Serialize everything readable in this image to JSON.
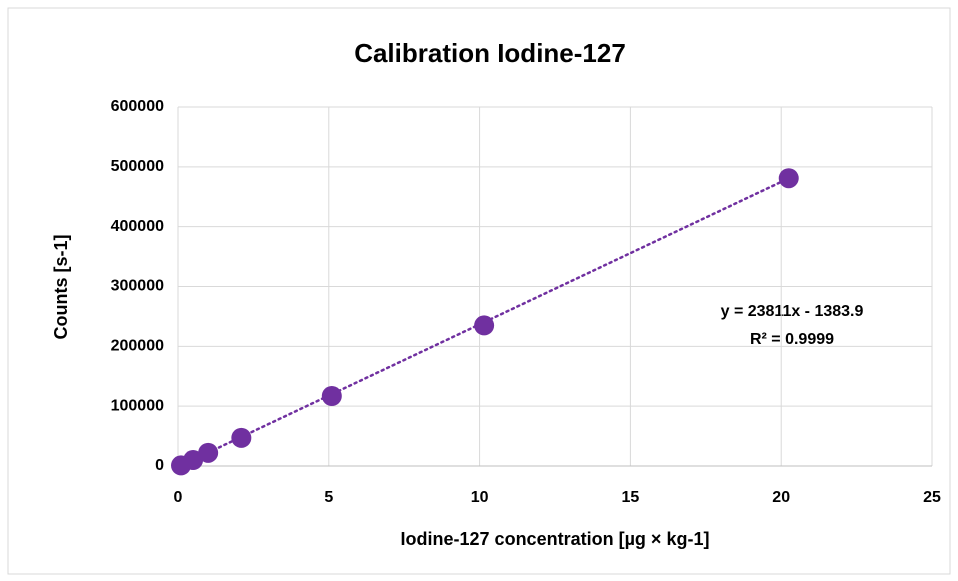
{
  "chart_data": {
    "type": "scatter",
    "title": "Calibration Iodine-127",
    "x_label": "Iodine-127 concentration  [µg × kg-1]",
    "y_label": "Counts  [s-1]",
    "series": [
      {
        "name": "Iodine-127",
        "color": "#7030a0",
        "x": [
          0.1,
          0.5,
          1.0,
          2.1,
          5.1,
          10.15,
          20.25
        ],
        "values": [
          1000,
          10000,
          22000,
          47000,
          117000,
          235000,
          481000
        ]
      }
    ],
    "xlim": [
      0,
      25
    ],
    "xticks": [
      0,
      5,
      10,
      15,
      20,
      25
    ],
    "ylim": [
      0,
      600000
    ],
    "yticks": [
      0,
      100000,
      200000,
      300000,
      400000,
      500000,
      600000
    ],
    "grid": true,
    "trendline": {
      "slope": 23811,
      "intercept": -1383.9,
      "equation": "y = 23811x - 1383.9",
      "r2_label": "R² = 0.9999"
    }
  }
}
